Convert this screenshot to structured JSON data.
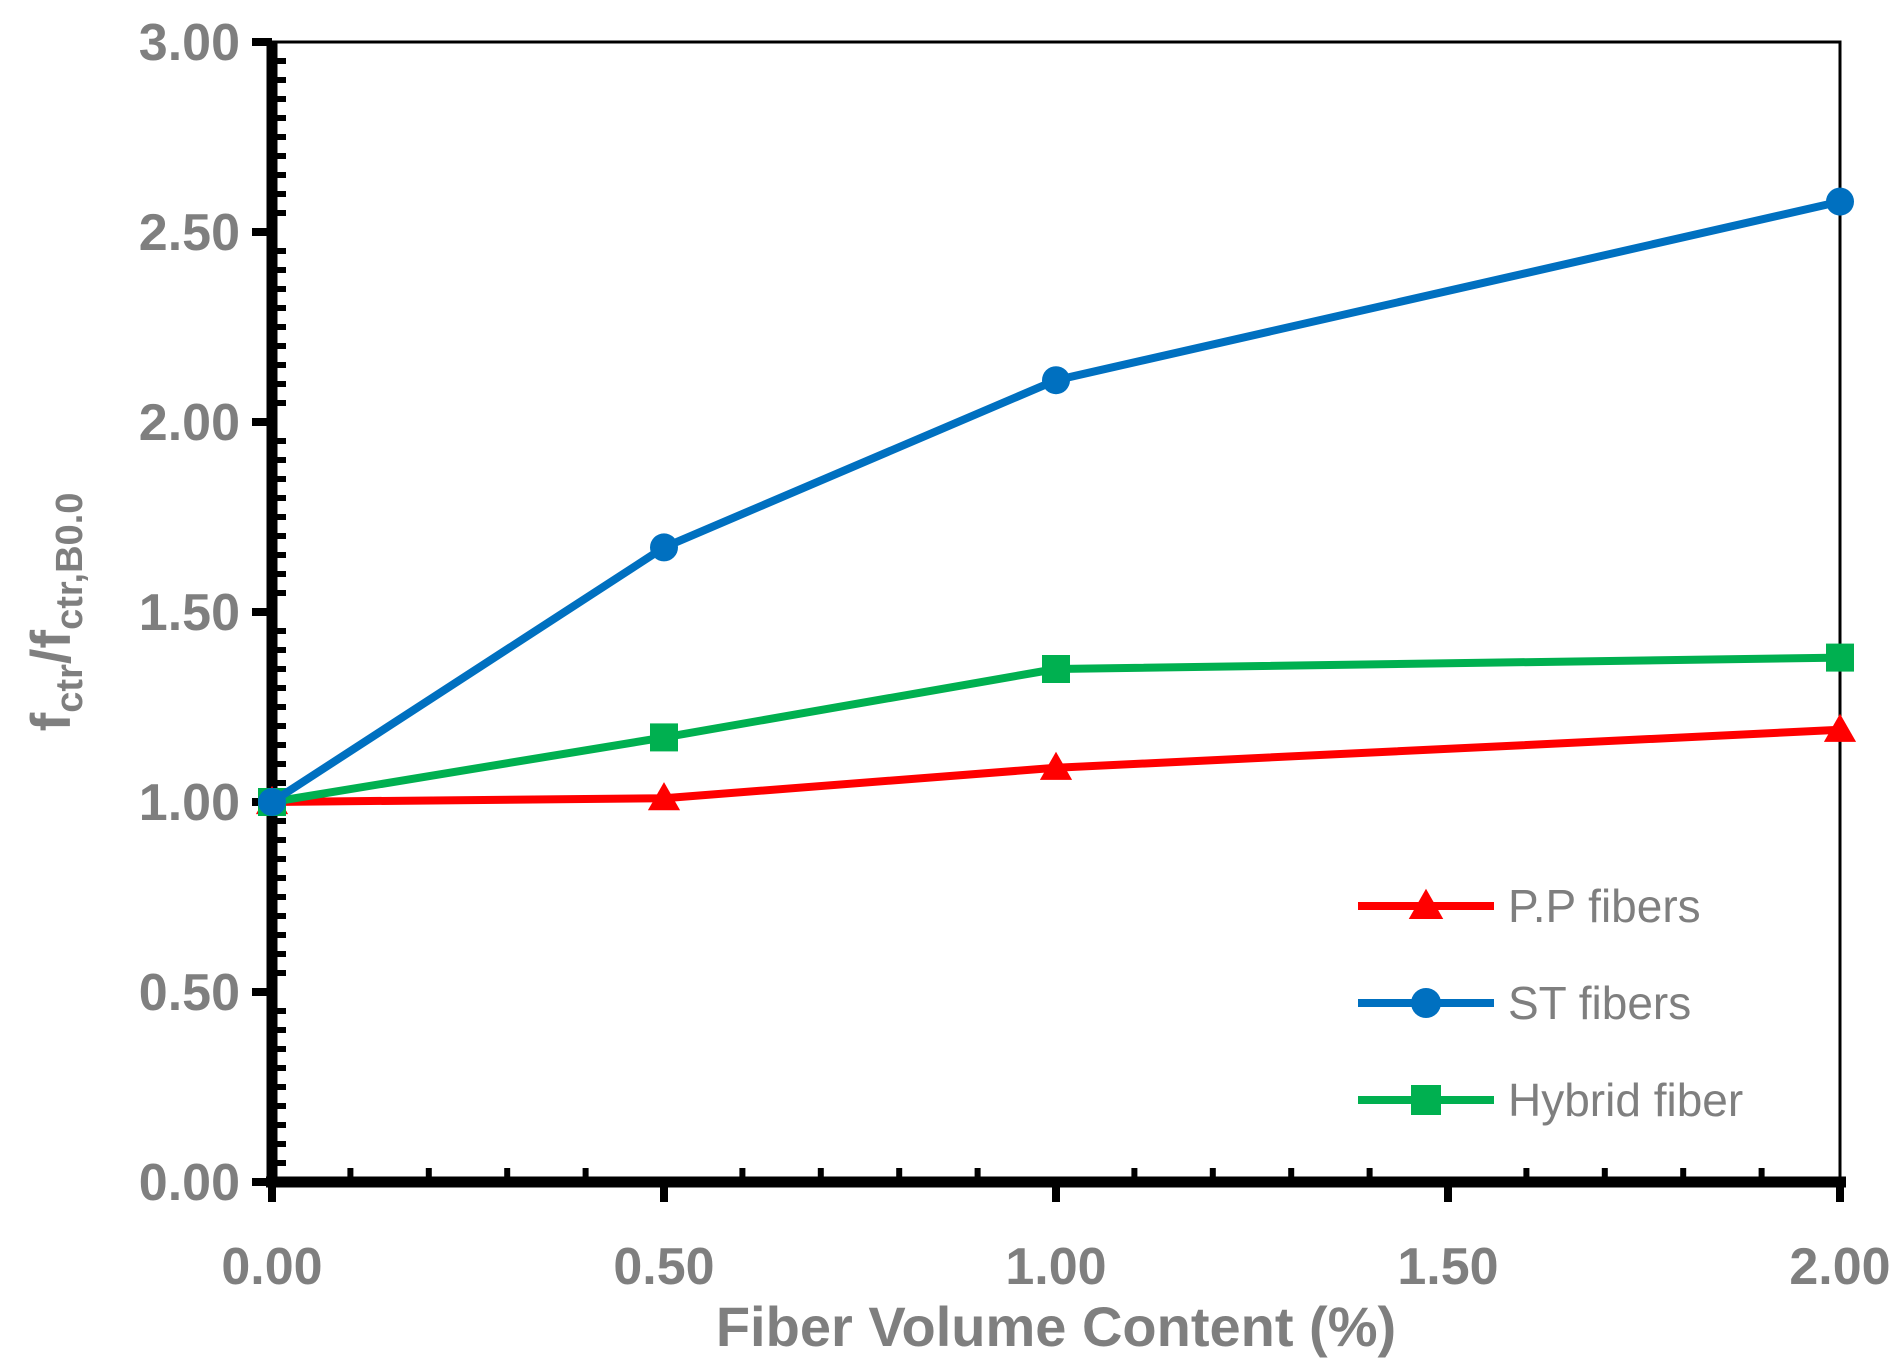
{
  "chart_data": {
    "type": "line",
    "title": "",
    "xlabel": "Fiber Volume Content (%)",
    "ylabel": {
      "main": "f",
      "sub": "ctr",
      "slash": "/f",
      "sub2": "ctr,B0.0"
    },
    "x": [
      0.0,
      0.5,
      1.0,
      2.0
    ],
    "x_tick_labels": [
      "0.00",
      "0.50",
      "1.00",
      "1.50",
      "2.00"
    ],
    "y_tick_labels": [
      "0.00",
      "0.50",
      "1.00",
      "1.50",
      "2.00",
      "2.50",
      "3.00"
    ],
    "ylim": [
      0,
      3
    ],
    "grid": false,
    "legend_position": "bottom-right",
    "series": [
      {
        "name": "P.P fibers",
        "marker": "triangle",
        "color": "#ff0000",
        "values": [
          1.0,
          1.01,
          1.09,
          1.19
        ]
      },
      {
        "name": "ST fibers",
        "marker": "circle",
        "color": "#0070c0",
        "values": [
          1.0,
          1.67,
          2.11,
          2.58
        ]
      },
      {
        "name": "Hybrid fiber",
        "marker": "square",
        "color": "#00b050",
        "values": [
          1.0,
          1.17,
          1.35,
          1.38
        ]
      }
    ]
  }
}
